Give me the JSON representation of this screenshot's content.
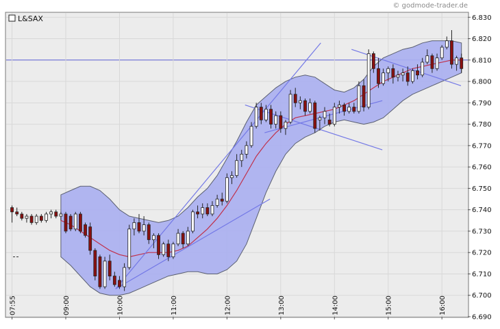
{
  "chart_data": {
    "type": "candlestick",
    "symbol": "L&SAX",
    "credit": "© godmode-trader.de",
    "ylim": [
      6.69,
      6.832
    ],
    "y_ticks": [
      "6.830",
      "6.820",
      "6.810",
      "6.800",
      "6.790",
      "6.780",
      "6.770",
      "6.760",
      "6.750",
      "6.740",
      "6.730",
      "6.720",
      "6.710",
      "6.700",
      "6.690"
    ],
    "x_ticks": [
      {
        "label": "07:55",
        "t": 0
      },
      {
        "label": "09:00",
        "t": 11
      },
      {
        "label": "10:00",
        "t": 22
      },
      {
        "label": "11:00",
        "t": 33
      },
      {
        "label": "12:00",
        "t": 44
      },
      {
        "label": "13:00",
        "t": 55
      },
      {
        "label": "14:00",
        "t": 66
      },
      {
        "label": "15:00",
        "t": 77
      },
      {
        "label": "16:00",
        "t": 88
      }
    ],
    "t_range": [
      -1.2,
      93.3
    ],
    "reference_line": 6.81,
    "stray_marker": 6.718,
    "colors": {
      "band_fill": "#aab0f0",
      "band_edge": "#5a5f70",
      "middle_line": "#c0304a",
      "trendline": "#7378e6",
      "up_candle": "#ffffff",
      "down_candle": "#8a1010",
      "candle_outline": "#222222",
      "ref_line": "#5c63d8",
      "plot_bg": "#ececec",
      "grid": "#d8d8d8"
    },
    "candles": [
      [
        6.741,
        6.742,
        6.734,
        6.739
      ],
      [
        6.739,
        6.741,
        6.737,
        6.738
      ],
      [
        6.738,
        6.739,
        6.735,
        6.736
      ],
      [
        6.736,
        6.738,
        6.734,
        6.737
      ],
      [
        6.737,
        6.738,
        6.733,
        6.734
      ],
      [
        6.734,
        6.738,
        6.733,
        6.737
      ],
      [
        6.737,
        6.738,
        6.734,
        6.735
      ],
      [
        6.735,
        6.739,
        6.734,
        6.738
      ],
      [
        6.738,
        6.74,
        6.736,
        6.739
      ],
      [
        6.739,
        6.74,
        6.736,
        6.737
      ],
      [
        6.737,
        6.739,
        6.735,
        6.738
      ],
      [
        6.738,
        6.739,
        6.729,
        6.73
      ],
      [
        6.737,
        6.738,
        6.73,
        6.731
      ],
      [
        6.731,
        6.739,
        6.73,
        6.738
      ],
      [
        6.738,
        6.739,
        6.729,
        6.73
      ],
      [
        6.733,
        6.734,
        6.727,
        6.728
      ],
      [
        6.732,
        6.734,
        6.719,
        6.721
      ],
      [
        6.721,
        6.722,
        6.707,
        6.709
      ],
      [
        6.718,
        6.719,
        6.703,
        6.704
      ],
      [
        6.704,
        6.718,
        6.703,
        6.716
      ],
      [
        6.716,
        6.719,
        6.707,
        6.709
      ],
      [
        6.709,
        6.711,
        6.704,
        6.705
      ],
      [
        6.707,
        6.709,
        6.703,
        6.704
      ],
      [
        6.704,
        6.715,
        6.702,
        6.713
      ],
      [
        6.713,
        6.733,
        6.712,
        6.731
      ],
      [
        6.731,
        6.736,
        6.728,
        6.734
      ],
      [
        6.734,
        6.738,
        6.729,
        6.73
      ],
      [
        6.73,
        6.737,
        6.728,
        6.733
      ],
      [
        6.733,
        6.734,
        6.724,
        6.726
      ],
      [
        6.726,
        6.729,
        6.722,
        6.728
      ],
      [
        6.728,
        6.729,
        6.717,
        6.719
      ],
      [
        6.719,
        6.725,
        6.718,
        6.724
      ],
      [
        6.724,
        6.726,
        6.716,
        6.718
      ],
      [
        6.718,
        6.725,
        6.717,
        6.724
      ],
      [
        6.724,
        6.731,
        6.723,
        6.729
      ],
      [
        6.729,
        6.73,
        6.722,
        6.724
      ],
      [
        6.724,
        6.732,
        6.723,
        6.73
      ],
      [
        6.73,
        6.74,
        6.729,
        6.739
      ],
      [
        6.739,
        6.742,
        6.736,
        6.738
      ],
      [
        6.738,
        6.743,
        6.736,
        6.741
      ],
      [
        6.741,
        6.743,
        6.737,
        6.738
      ],
      [
        6.738,
        6.744,
        6.737,
        6.742
      ],
      [
        6.742,
        6.747,
        6.741,
        6.745
      ],
      [
        6.745,
        6.748,
        6.742,
        6.744
      ],
      [
        6.744,
        6.757,
        6.743,
        6.755
      ],
      [
        6.755,
        6.758,
        6.752,
        6.756
      ],
      [
        6.756,
        6.766,
        6.755,
        6.763
      ],
      [
        6.763,
        6.768,
        6.76,
        6.766
      ],
      [
        6.766,
        6.772,
        6.764,
        6.77
      ],
      [
        6.77,
        6.781,
        6.769,
        6.779
      ],
      [
        6.779,
        6.79,
        6.778,
        6.788
      ],
      [
        6.788,
        6.79,
        6.78,
        6.782
      ],
      [
        6.782,
        6.789,
        6.781,
        6.787
      ],
      [
        6.787,
        6.789,
        6.778,
        6.78
      ],
      [
        6.78,
        6.786,
        6.778,
        6.784
      ],
      [
        6.784,
        6.786,
        6.776,
        6.778
      ],
      [
        6.778,
        6.782,
        6.775,
        6.781
      ],
      [
        6.781,
        6.796,
        6.78,
        6.794
      ],
      [
        6.794,
        6.797,
        6.788,
        6.79
      ],
      [
        6.79,
        6.793,
        6.787,
        6.791
      ],
      [
        6.791,
        6.792,
        6.784,
        6.786
      ],
      [
        6.786,
        6.792,
        6.785,
        6.79
      ],
      [
        6.79,
        6.791,
        6.776,
        6.778
      ],
      [
        6.782,
        6.784,
        6.777,
        6.783
      ],
      [
        6.783,
        6.788,
        6.78,
        6.786
      ],
      [
        6.782,
        6.785,
        6.779,
        6.78
      ],
      [
        6.78,
        6.79,
        6.779,
        6.788
      ],
      [
        6.788,
        6.791,
        6.785,
        6.789
      ],
      [
        6.789,
        6.79,
        6.784,
        6.786
      ],
      [
        6.786,
        6.79,
        6.785,
        6.788
      ],
      [
        6.788,
        6.79,
        6.785,
        6.786
      ],
      [
        6.786,
        6.8,
        6.785,
        6.798
      ],
      [
        6.798,
        6.801,
        6.786,
        6.788
      ],
      [
        6.788,
        6.815,
        6.787,
        6.813
      ],
      [
        6.813,
        6.814,
        6.804,
        6.806
      ],
      [
        6.806,
        6.811,
        6.797,
        6.799
      ],
      [
        6.799,
        6.806,
        6.798,
        6.804
      ],
      [
        6.804,
        6.807,
        6.8,
        6.806
      ],
      [
        6.806,
        6.808,
        6.799,
        6.802
      ],
      [
        6.802,
        6.805,
        6.8,
        6.803
      ],
      [
        6.803,
        6.806,
        6.8,
        6.804
      ],
      [
        6.804,
        6.807,
        6.798,
        6.8
      ],
      [
        6.8,
        6.806,
        6.799,
        6.805
      ],
      [
        6.805,
        6.808,
        6.801,
        6.803
      ],
      [
        6.803,
        6.811,
        6.802,
        6.809
      ],
      [
        6.809,
        6.815,
        6.808,
        6.812
      ],
      [
        6.812,
        6.813,
        6.804,
        6.806
      ],
      [
        6.806,
        6.813,
        6.805,
        6.811
      ],
      [
        6.811,
        6.817,
        6.81,
        6.816
      ],
      [
        6.816,
        6.821,
        6.815,
        6.819
      ],
      [
        6.819,
        6.824,
        6.806,
        6.808
      ],
      [
        6.808,
        6.812,
        6.805,
        6.811
      ],
      [
        6.811,
        6.813,
        6.804,
        6.806
      ]
    ],
    "bollinger": {
      "t": [
        10.0,
        12.0,
        14.0,
        16.0,
        18.0,
        20.0,
        22.0,
        24.0,
        26.0,
        28.0,
        30.0,
        32.0,
        34.0,
        36.0,
        38.0,
        40.0,
        42.0,
        44.0,
        46.0,
        48.0,
        50.0,
        52.0,
        54.0,
        56.0,
        58.0,
        60.0,
        62.0,
        64.0,
        66.0,
        68.0,
        70.0,
        72.0,
        74.0,
        76.0,
        78.0,
        80.0,
        82.0,
        84.0,
        86.0,
        88.0,
        90.0,
        92.0
      ],
      "upper": [
        6.747,
        6.749,
        6.751,
        6.751,
        6.749,
        6.745,
        6.74,
        6.737,
        6.736,
        6.735,
        6.734,
        6.735,
        6.737,
        6.741,
        6.746,
        6.75,
        6.756,
        6.764,
        6.772,
        6.781,
        6.789,
        6.793,
        6.797,
        6.8,
        6.802,
        6.803,
        6.802,
        6.799,
        6.796,
        6.795,
        6.797,
        6.801,
        6.807,
        6.811,
        6.813,
        6.815,
        6.816,
        6.818,
        6.819,
        6.819,
        6.819,
        6.818
      ],
      "middle": [
        6.735,
        6.733,
        6.73,
        6.727,
        6.724,
        6.721,
        6.719,
        6.718,
        6.719,
        6.72,
        6.72,
        6.72,
        6.721,
        6.723,
        6.727,
        6.731,
        6.736,
        6.742,
        6.749,
        6.757,
        6.765,
        6.771,
        6.776,
        6.78,
        6.783,
        6.784,
        6.785,
        6.786,
        6.787,
        6.789,
        6.791,
        6.794,
        6.797,
        6.8,
        6.802,
        6.804,
        6.806,
        6.807,
        6.808,
        6.809,
        6.81,
        6.81
      ],
      "lower": [
        6.718,
        6.714,
        6.709,
        6.704,
        6.701,
        6.7,
        6.7,
        6.701,
        6.703,
        6.705,
        6.707,
        6.709,
        6.71,
        6.711,
        6.711,
        6.71,
        6.71,
        6.712,
        6.716,
        6.724,
        6.736,
        6.748,
        6.758,
        6.766,
        6.771,
        6.774,
        6.776,
        6.779,
        6.781,
        6.782,
        6.781,
        6.78,
        6.781,
        6.783,
        6.787,
        6.791,
        6.794,
        6.796,
        6.798,
        6.8,
        6.802,
        6.804
      ]
    },
    "trendlines": [
      [
        [
          21.2,
          6.703
        ],
        [
          52.8,
          6.745
        ]
      ],
      [
        [
          21.2,
          6.703
        ],
        [
          63.2,
          6.818
        ]
      ],
      [
        [
          51.7,
          6.776
        ],
        [
          75.8,
          6.791
        ]
      ],
      [
        [
          47.7,
          6.789
        ],
        [
          75.8,
          6.768
        ]
      ],
      [
        [
          69.5,
          6.815
        ],
        [
          91.9,
          6.798
        ]
      ]
    ]
  }
}
